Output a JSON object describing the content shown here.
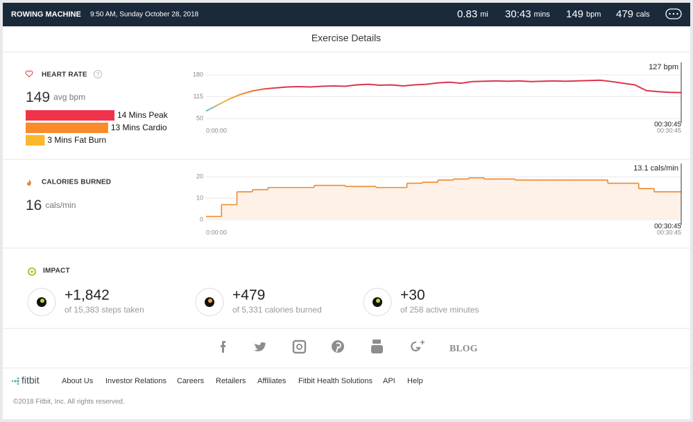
{
  "header": {
    "activity": "ROWING MACHINE",
    "datetime": "9:50 AM, Sunday October 28, 2018",
    "stats": [
      {
        "value": "0.83",
        "unit": "mi"
      },
      {
        "value": "30:43",
        "unit": "mins"
      },
      {
        "value": "149",
        "unit": "bpm"
      },
      {
        "value": "479",
        "unit": "cals"
      }
    ]
  },
  "title": "Exercise Details",
  "heart_rate": {
    "label": "HEART RATE",
    "help": "?",
    "avg": "149",
    "avg_unit": "avg bpm",
    "zones": [
      {
        "label": "14 Mins Peak",
        "minutes": 14,
        "color": "#f0334b"
      },
      {
        "label": "13 Mins Cardio",
        "minutes": 13,
        "color": "#f98b2a"
      },
      {
        "label": "3 Mins Fat Burn",
        "minutes": 3,
        "color": "#fbb82c"
      }
    ]
  },
  "calories": {
    "label": "CALORIES BURNED",
    "avg": "16",
    "avg_unit": "cals/min"
  },
  "chart_data": [
    {
      "type": "line",
      "color": "#d9344a",
      "x": [
        0,
        45,
        90,
        135,
        180,
        225,
        270,
        315,
        360,
        405,
        450,
        495,
        540,
        585,
        630,
        675,
        720,
        765,
        810,
        855,
        900,
        945,
        990,
        1035,
        1080,
        1125,
        1170,
        1215,
        1260,
        1305,
        1350,
        1395,
        1440,
        1485,
        1530,
        1575,
        1620,
        1665,
        1710,
        1755,
        1800,
        1845
      ],
      "values": [
        72,
        90,
        108,
        122,
        132,
        138,
        141,
        144,
        145,
        144,
        146,
        147,
        146,
        150,
        152,
        149,
        150,
        147,
        150,
        152,
        156,
        158,
        155,
        160,
        161,
        162,
        161,
        162,
        160,
        161,
        162,
        161,
        162,
        163,
        164,
        160,
        155,
        150,
        133,
        130,
        128,
        127
      ],
      "xlim": [
        0,
        1845
      ],
      "xticks": [
        {
          "value": 0,
          "label": "0:00:00"
        },
        {
          "value": 1845,
          "label": "00:30:45"
        }
      ],
      "ylim": [
        50,
        180
      ],
      "yticks": [
        50,
        115,
        180
      ],
      "grid": true,
      "cursor": {
        "value_label": "127 bpm",
        "time_label": "00:30:45"
      }
    },
    {
      "type": "area",
      "step": true,
      "color": "#e98a2f",
      "fill": "#fdf1e8",
      "x": [
        0,
        60,
        120,
        180,
        240,
        300,
        360,
        420,
        480,
        540,
        600,
        660,
        720,
        780,
        840,
        900,
        960,
        1020,
        1080,
        1140,
        1200,
        1260,
        1320,
        1380,
        1440,
        1500,
        1560,
        1620,
        1680,
        1740,
        1800
      ],
      "values": [
        1.5,
        7,
        13,
        14,
        15,
        15,
        15,
        16,
        16,
        15.5,
        15.5,
        15,
        15,
        17,
        17.5,
        18.5,
        19,
        19.5,
        19,
        19,
        18.5,
        18.5,
        18.5,
        18.5,
        18.5,
        18.5,
        17,
        17,
        14.5,
        13,
        13
      ],
      "xlim": [
        0,
        1845
      ],
      "xticks": [
        {
          "value": 0,
          "label": "0:00:00"
        },
        {
          "value": 1845,
          "label": "00:30:45"
        }
      ],
      "ylim": [
        0,
        22
      ],
      "yticks": [
        0,
        10,
        20
      ],
      "grid": true,
      "cursor": {
        "value_label": "13.1 cals/min",
        "time_label": "00:30:45"
      }
    }
  ],
  "impact": {
    "label": "IMPACT",
    "items": [
      {
        "value": "+1,842",
        "desc": "of 15,383 steps taken"
      },
      {
        "value": "+479",
        "desc": "of 5,331 calories burned"
      },
      {
        "value": "+30",
        "desc": "of 258 active minutes"
      }
    ]
  },
  "social": {
    "blog": "BLOG"
  },
  "footer": {
    "brand": "fitbit",
    "links": [
      "About Us",
      "Investor Relations",
      "Careers",
      "Retailers",
      "Affiliates",
      "Fitbit Health Solutions",
      "API",
      "Help"
    ],
    "copyright": "©2018 Fitbit, Inc. All rights reserved."
  }
}
